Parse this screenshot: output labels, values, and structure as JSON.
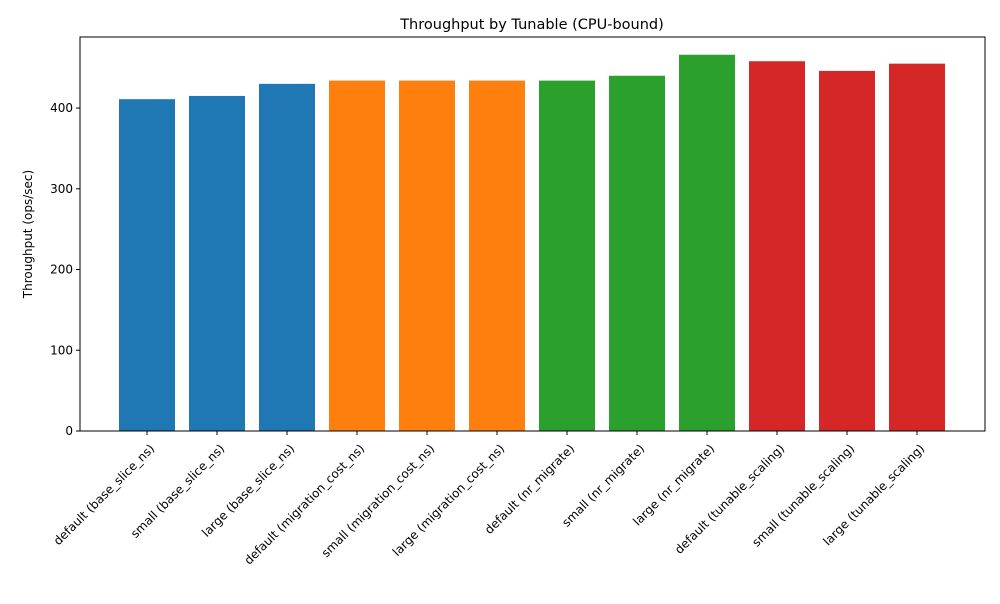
{
  "chart_data": {
    "type": "bar",
    "title": "Throughput by Tunable (CPU-bound)",
    "xlabel": "",
    "ylabel": "Throughput (ops/sec)",
    "ylim": [
      0,
      488
    ],
    "yticks": [
      0,
      100,
      200,
      300,
      400
    ],
    "grid": false,
    "categories": [
      "default (base_slice_ns)",
      "small (base_slice_ns)",
      "large (base_slice_ns)",
      "default (migration_cost_ns)",
      "small (migration_cost_ns)",
      "large (migration_cost_ns)",
      "default (nr_migrate)",
      "small (nr_migrate)",
      "large (nr_migrate)",
      "default (tunable_scaling)",
      "small (tunable_scaling)",
      "large (tunable_scaling)"
    ],
    "values": [
      411,
      415,
      430,
      434,
      434,
      434,
      434,
      440,
      466,
      458,
      446,
      455
    ],
    "colors": [
      "#1f77b4",
      "#1f77b4",
      "#1f77b4",
      "#ff7f0e",
      "#ff7f0e",
      "#ff7f0e",
      "#2ca02c",
      "#2ca02c",
      "#2ca02c",
      "#d62728",
      "#d62728",
      "#d62728"
    ]
  }
}
